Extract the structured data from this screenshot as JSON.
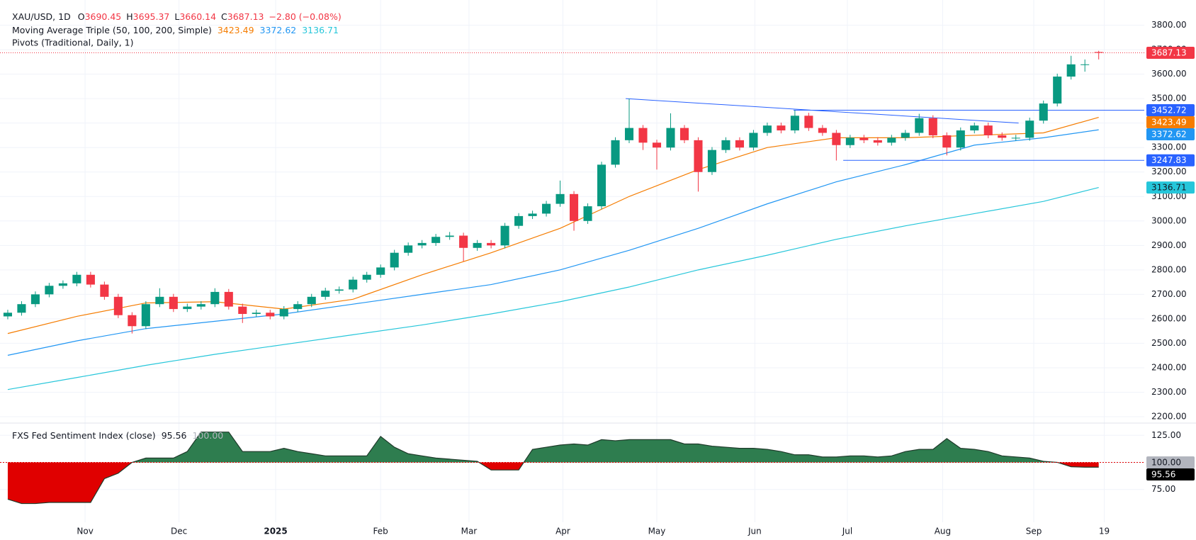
{
  "chart_data": [
    {
      "type": "candlestick",
      "title": "XAU/USD, 1D",
      "ohlc_labels": [
        "O",
        "H",
        "L",
        "C"
      ],
      "change_label": "−2.80 (−0.08%)",
      "open": [
        2610,
        2625,
        2660,
        2700,
        2735,
        2745,
        2780,
        2740,
        2690,
        2615,
        2570,
        2660,
        2690,
        2640,
        2650,
        2660,
        2710,
        2650,
        2620,
        2625,
        2610,
        2640,
        2660,
        2690,
        2715,
        2720,
        2760,
        2780,
        2810,
        2870,
        2900,
        2910,
        2935,
        2940,
        2890,
        2910,
        2900,
        2980,
        3020,
        3030,
        3070,
        3110,
        3000,
        3060,
        3230,
        3330,
        3380,
        3320,
        3300,
        3380,
        3330,
        3200,
        3290,
        3330,
        3300,
        3360,
        3390,
        3370,
        3430,
        3380,
        3360,
        3310,
        3340,
        3330,
        3320,
        3340,
        3360,
        3420,
        3350,
        3300,
        3370,
        3390,
        3350,
        3340,
        3340,
        3410,
        3480,
        3590,
        3640,
        3690.45
      ],
      "high": [
        2637,
        2672,
        2712,
        2747,
        2757,
        2792,
        2792,
        2752,
        2702,
        2627,
        2672,
        2725,
        2702,
        2662,
        2672,
        2725,
        2722,
        2662,
        2637,
        2637,
        2652,
        2672,
        2702,
        2727,
        2732,
        2772,
        2792,
        2822,
        2882,
        2912,
        2922,
        2947,
        2955,
        2952,
        2922,
        2922,
        2992,
        3032,
        3042,
        3082,
        3165,
        3122,
        3072,
        3242,
        3342,
        3500,
        3392,
        3332,
        3440,
        3392,
        3342,
        3302,
        3342,
        3342,
        3372,
        3402,
        3402,
        3452,
        3442,
        3392,
        3372,
        3352,
        3352,
        3342,
        3352,
        3372,
        3438,
        3432,
        3362,
        3382,
        3402,
        3402,
        3362,
        3352,
        3422,
        3492,
        3602,
        3675,
        3660,
        3695.37
      ],
      "low": [
        2598,
        2613,
        2648,
        2688,
        2723,
        2733,
        2728,
        2678,
        2603,
        2540,
        2558,
        2648,
        2628,
        2628,
        2638,
        2648,
        2638,
        2583,
        2608,
        2598,
        2598,
        2628,
        2648,
        2678,
        2703,
        2708,
        2748,
        2768,
        2798,
        2858,
        2888,
        2898,
        2923,
        2835,
        2878,
        2888,
        2888,
        2968,
        3008,
        3018,
        3058,
        2960,
        2988,
        3048,
        3218,
        3318,
        3290,
        3210,
        3288,
        3318,
        3120,
        3188,
        3278,
        3288,
        3288,
        3348,
        3358,
        3358,
        3368,
        3348,
        3247,
        3298,
        3318,
        3308,
        3308,
        3328,
        3348,
        3338,
        3268,
        3288,
        3358,
        3338,
        3328,
        3328,
        3328,
        3398,
        3468,
        3578,
        3610,
        3660.14
      ],
      "close": [
        2625,
        2660,
        2700,
        2735,
        2745,
        2780,
        2740,
        2690,
        2615,
        2570,
        2660,
        2690,
        2640,
        2650,
        2660,
        2710,
        2650,
        2620,
        2625,
        2610,
        2640,
        2660,
        2690,
        2715,
        2720,
        2760,
        2780,
        2810,
        2870,
        2900,
        2910,
        2935,
        2940,
        2890,
        2910,
        2900,
        2980,
        3020,
        3030,
        3070,
        3110,
        3000,
        3060,
        3230,
        3330,
        3380,
        3320,
        3300,
        3380,
        3330,
        3200,
        3290,
        3330,
        3300,
        3360,
        3390,
        3370,
        3430,
        3380,
        3360,
        3310,
        3340,
        3330,
        3320,
        3340,
        3360,
        3420,
        3350,
        3300,
        3370,
        3390,
        3350,
        3340,
        3340,
        3410,
        3480,
        3590,
        3640,
        3640,
        3687.13
      ],
      "up_color": "#089981",
      "down_color": "#f23645",
      "xlim": [
        -0.1,
        82.3
      ],
      "ylim": [
        2174,
        3903
      ],
      "yticks": [
        {
          "value": 2200,
          "label": "2200.00"
        },
        {
          "value": 2300,
          "label": "2300.00"
        },
        {
          "value": 2400,
          "label": "2400.00"
        },
        {
          "value": 2500,
          "label": "2500.00"
        },
        {
          "value": 2600,
          "label": "2600.00"
        },
        {
          "value": 2700,
          "label": "2700.00"
        },
        {
          "value": 2800,
          "label": "2800.00"
        },
        {
          "value": 2900,
          "label": "2900.00"
        },
        {
          "value": 3000,
          "label": "3000.00"
        },
        {
          "value": 3100,
          "label": "3100.00"
        },
        {
          "value": 3200,
          "label": "3200.00"
        },
        {
          "value": 3300,
          "label": "3300.00"
        },
        {
          "value": 3400,
          "label": "3400.00"
        },
        {
          "value": 3500,
          "label": "3500.00"
        },
        {
          "value": 3600,
          "label": "3600.00"
        },
        {
          "value": 3700,
          "label": "3700.00"
        },
        {
          "value": 3800,
          "label": "3800.00"
        }
      ],
      "xticks": [
        {
          "value": 5.6,
          "label": "Nov"
        },
        {
          "value": 12.4,
          "label": "Dec"
        },
        {
          "value": 19.4,
          "label": "2025"
        },
        {
          "value": 27,
          "label": "Feb"
        },
        {
          "value": 33.4,
          "label": "Mar"
        },
        {
          "value": 40.2,
          "label": "Apr"
        },
        {
          "value": 47,
          "label": "May"
        },
        {
          "value": 54.1,
          "label": "Jun"
        },
        {
          "value": 60.8,
          "label": "Jul"
        },
        {
          "value": 67.7,
          "label": "Aug"
        },
        {
          "value": 74.3,
          "label": "Sep"
        },
        {
          "value": 79.4,
          "label": "19"
        }
      ],
      "grid": true,
      "ma_title": "Moving Average Triple (50, 100, 200, Simple)",
      "ma_x": [
        0,
        5,
        10,
        15,
        20,
        25,
        30,
        35,
        40,
        45,
        50,
        55,
        60,
        65,
        70,
        75,
        79
      ],
      "moving_averages": [
        {
          "color": "#f57c00",
          "values": [
            2540,
            2610,
            2665,
            2670,
            2640,
            2680,
            2780,
            2870,
            2970,
            3100,
            3210,
            3300,
            3340,
            3340,
            3350,
            3360,
            3423.49
          ]
        },
        {
          "color": "#2196f3",
          "values": [
            2451,
            2510,
            2560,
            2590,
            2620,
            2660,
            2700,
            2740,
            2800,
            2880,
            2970,
            3070,
            3160,
            3230,
            3310,
            3340,
            3372.62
          ]
        },
        {
          "color": "#26c6da",
          "values": [
            2311,
            2360,
            2410,
            2455,
            2495,
            2535,
            2575,
            2620,
            2670,
            2730,
            2800,
            2860,
            2925,
            2980,
            3030,
            3080,
            3136.71
          ]
        }
      ],
      "pivots_title": "Pivots (Traditional, Daily, 1)",
      "pivot_color": "#2962ff",
      "pivots": [
        {
          "value": 3452.72,
          "x_start": 56.9
        },
        {
          "value": 3247.83,
          "x_start": 60.5
        }
      ],
      "trendline": {
        "x": [
          44.75,
          73.2
        ],
        "values": [
          3500,
          3400
        ],
        "color": "#2962ff"
      }
    },
    {
      "type": "area",
      "title": "FXS Fed Sentiment Index (close)",
      "values": [
        66,
        62,
        62,
        63,
        63,
        63,
        63,
        85,
        90,
        100,
        104,
        104,
        104,
        110,
        128,
        128,
        128,
        110,
        110,
        110,
        113,
        110,
        108,
        106,
        106,
        106,
        106,
        124,
        114,
        108,
        106,
        104,
        103,
        102,
        101,
        93,
        93,
        93,
        112,
        114,
        116,
        117,
        116,
        121,
        120,
        121,
        121,
        121,
        121,
        117,
        117,
        115,
        114,
        113,
        113,
        112,
        110,
        107,
        107,
        105,
        105,
        106,
        106,
        105,
        106,
        110,
        112,
        112,
        122,
        113,
        112,
        110,
        106,
        105,
        104,
        101,
        100,
        96,
        95.56,
        95.56
      ],
      "baseline": {
        "value": 100,
        "label": "100.00"
      },
      "above_color": "#2e7d4f",
      "below_color": "#e00000",
      "ylim": [
        44.7,
        136.3
      ],
      "yticks": [
        {
          "value": 75,
          "label": "75.00"
        },
        {
          "value": 100,
          "label": "100.00"
        },
        {
          "value": 125,
          "label": "125.00"
        }
      ]
    }
  ]
}
